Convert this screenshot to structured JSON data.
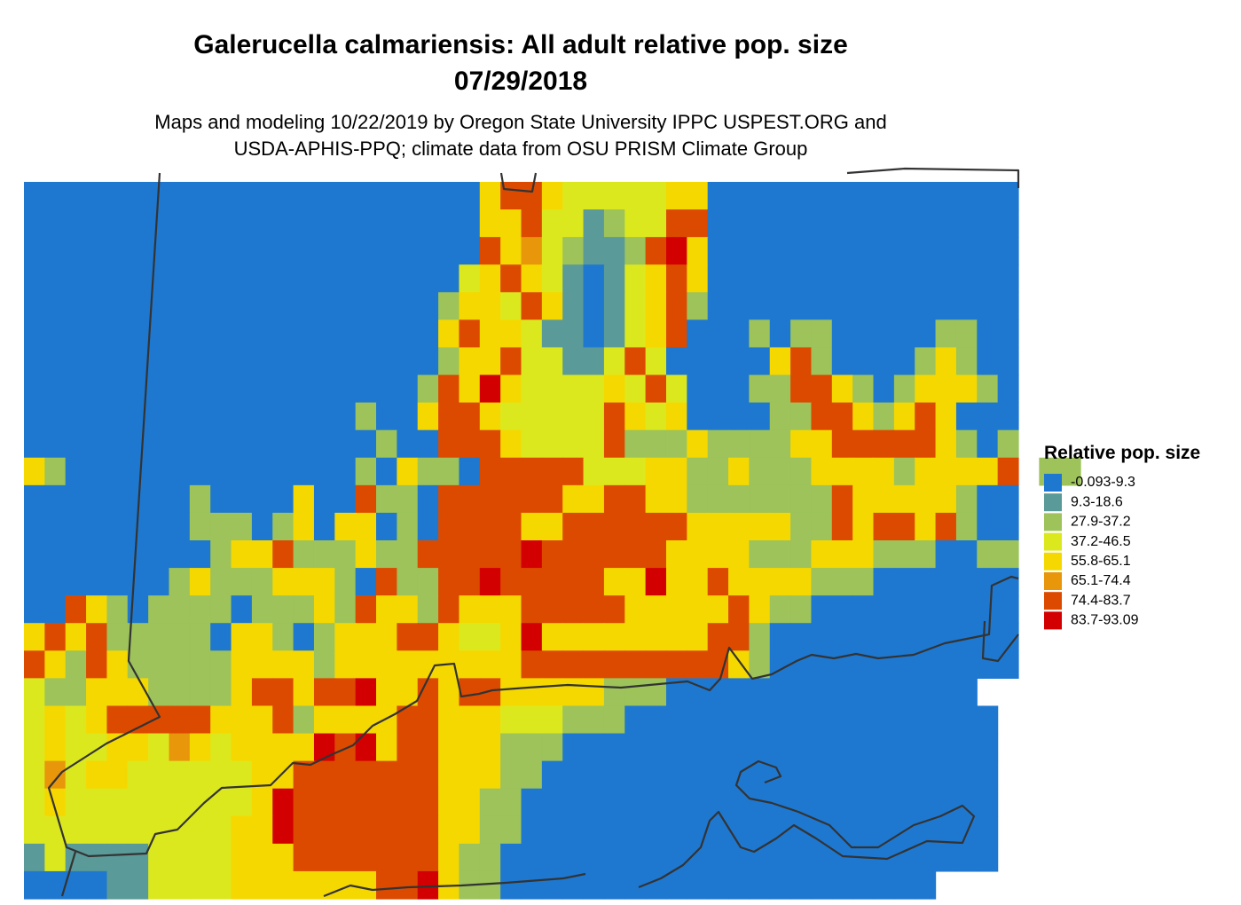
{
  "header": {
    "title": [
      "Galerucella calmariensis: All adult relative pop. size",
      "07/29/2018"
    ],
    "subtitle": [
      "Maps and modeling 10/22/2019 by Oregon State University IPPC USPEST.ORG and",
      "USDA-APHIS-PPQ; climate data from OSU PRISM Climate Group"
    ]
  },
  "legend": {
    "title": "Relative pop. size",
    "items": [
      {
        "label": "-0.093-9.3",
        "color": "#1e78d0"
      },
      {
        "label": "9.3-18.6",
        "color": "#5a9a98"
      },
      {
        "label": "27.9-37.2",
        "color": "#9dc35a"
      },
      {
        "label": "37.2-46.5",
        "color": "#dce81e"
      },
      {
        "label": "55.8-65.1",
        "color": "#f5d800"
      },
      {
        "label": "65.1-74.4",
        "color": "#e8960a"
      },
      {
        "label": "74.4-83.7",
        "color": "#dc4a00"
      },
      {
        "label": "83.7-93.09",
        "color": "#d20000"
      }
    ]
  },
  "map": {
    "rows": [
      "000000000000000000000046643333344000000000000000",
      "000000000000000000000044633123366000000000000000",
      "000000000000000000000064532112674000000000000000",
      "000000000000000000000346431013464000000000000000",
      "000000000000000000002443641013462000000000000000",
      "000000000000000000004644311013460002022000002200",
      "000000000000000000002446331136300000462000024200",
      "000000000000000000026474333343630002266420244420",
      "000000000000000020046643333364340000226642464000",
      "000000000000000002006664333362224222244666664202",
      "420000000000000020422066666333442242224444244446 22",
      "000000002000040062206666664466442222222644444200",
      "000000002220240440206666446666664444422646646200",
      "000000000244622242266666766666644442224442220022",
      "000000024222444206226676666644744644442220000000",
      "006420222202224264426444666664444464220000000000",
      "464622222044202444664334744444444662000000000000",
      "642642222244442444444444666666666642000000000000",
      "3224442222466466744646644444222000000000000000.",
      "34346666644462444466444333222000000000000000000.",
      "34334435434444767466444222000000000000000000000.",
      "35344333333446666666444220000000000000000000000.",
      "34333333333476666666442200000000000000000000000.",
      "33333333334476666666442200000000000000000000000.",
      "13111133334446666666422000000000000000000000000..",
      "00001133334444444667422000000000000000000000....."
    ]
  }
}
